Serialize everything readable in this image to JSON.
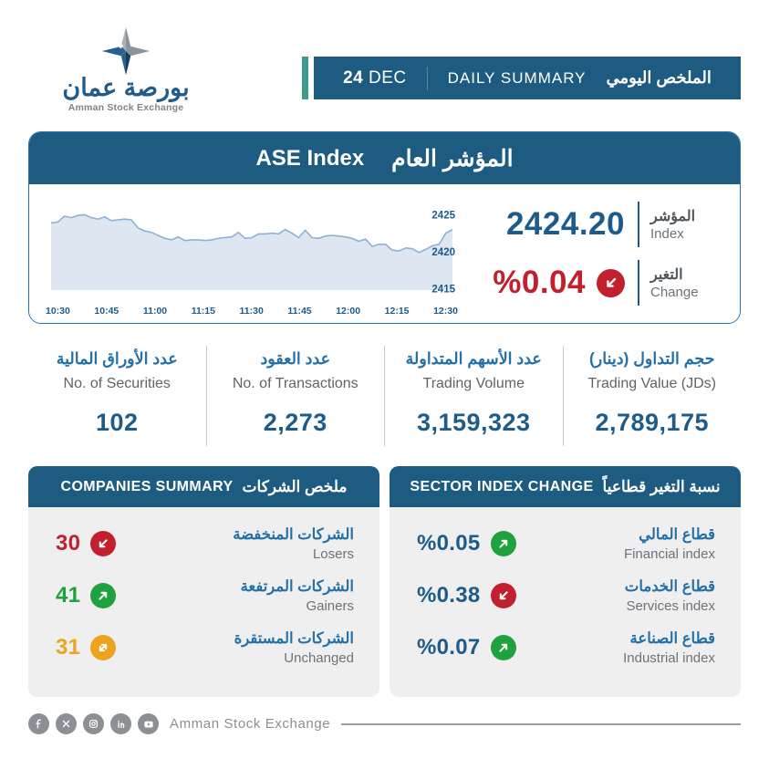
{
  "colors": {
    "primary": "#1d5b80",
    "accent_teal": "#3f9a8e",
    "value_blue": "#1d5c8a",
    "label_blue": "#2470a8",
    "red": "#c21f2f",
    "green": "#1fa23d",
    "amber": "#eca41f",
    "gray_text": "#6d7378",
    "chart_fill": "#dde6f1",
    "chart_line": "#8fb0d4"
  },
  "brand": {
    "name_ar": "بورصة عمان",
    "name_en": "Amman Stock Exchange"
  },
  "header": {
    "day": "24",
    "month": "DEC",
    "title_en": "DAILY SUMMARY",
    "title_ar": "الملخص اليومي"
  },
  "index_card": {
    "title_en": "ASE Index",
    "title_ar": "المؤشر العام",
    "index": {
      "value": "2424.20",
      "label_ar": "المؤشر",
      "label_en": "Index"
    },
    "change": {
      "value": "%0.04",
      "label_ar": "التغير",
      "label_en": "Change",
      "direction": "down",
      "value_color": "#c21f2f",
      "icon_color": "#c21f2f"
    }
  },
  "stats": [
    {
      "label_ar": "عدد الأوراق المالية",
      "label_en": "No. of Securities",
      "value": "102"
    },
    {
      "label_ar": "عدد العقود",
      "label_en": "No. of Transactions",
      "value": "2,273"
    },
    {
      "label_ar": "عدد الأسهم المتداولة",
      "label_en": "Trading Volume",
      "value": "3,159,323"
    },
    {
      "label_ar": "حجم التداول (دينار)",
      "label_en": "Trading Value (JDs)",
      "value": "2,789,175"
    }
  ],
  "companies": {
    "title_en": "COMPANIES SUMMARY",
    "title_ar": "ملخص الشركات",
    "rows": [
      {
        "label_ar": "الشركات المنخفضة",
        "label_en": "Losers",
        "value": "30",
        "direction": "down",
        "value_color": "#c21f2f",
        "icon_color": "#c21f2f"
      },
      {
        "label_ar": "الشركات المرتفعة",
        "label_en": "Gainers",
        "value": "41",
        "direction": "up",
        "value_color": "#1fa23d",
        "icon_color": "#1fa23d"
      },
      {
        "label_ar": "الشركات المستقرة",
        "label_en": "Unchanged",
        "value": "31",
        "direction": "both",
        "value_color": "#eca41f",
        "icon_color": "#eca41f"
      }
    ]
  },
  "sectors": {
    "title_en": "SECTOR INDEX CHANGE",
    "title_ar": "نسبة التغير قطاعياً",
    "rows": [
      {
        "label_ar": "قطاع المالي",
        "label_en": "Financial index",
        "value": "%0.05",
        "direction": "up",
        "value_color": "#1d5c8a",
        "icon_color": "#1fa23d"
      },
      {
        "label_ar": "قطاع الخدمات",
        "label_en": "Services index",
        "value": "%0.38",
        "direction": "down",
        "value_color": "#1d5c8a",
        "icon_color": "#c21f2f"
      },
      {
        "label_ar": "قطاع الصناعة",
        "label_en": "Industrial index",
        "value": "%0.07",
        "direction": "up",
        "value_color": "#1d5c8a",
        "icon_color": "#1fa23d"
      }
    ]
  },
  "footer": {
    "brand_text": "Amman Stock Exchange",
    "social": [
      "facebook",
      "x",
      "instagram",
      "linkedin",
      "youtube"
    ]
  },
  "chart_data": {
    "type": "area",
    "title": "ASE Index intraday",
    "x_ticks": [
      "10:30",
      "10:45",
      "11:00",
      "11:15",
      "11:30",
      "11:45",
      "12:00",
      "12:15",
      "12:30"
    ],
    "y_ticks": [
      2425,
      2420,
      2415
    ],
    "ylim": [
      2414.8,
      2426.4
    ],
    "values": [
      2423.9,
      2424.0,
      2424.8,
      2424.6,
      2424.9,
      2425.0,
      2424.6,
      2424.4,
      2424.7,
      2424.2,
      2424.3,
      2424.4,
      2424.3,
      2423.2,
      2422.8,
      2422.6,
      2422.2,
      2421.8,
      2421.6,
      2422.0,
      2421.5,
      2421.6,
      2421.6,
      2421.5,
      2421.6,
      2421.8,
      2421.9,
      2422.0,
      2422.6,
      2421.8,
      2421.9,
      2422.4,
      2422.4,
      2422.5,
      2422.4,
      2423.0,
      2422.5,
      2421.9,
      2422.9,
      2421.9,
      2421.8,
      2422.1,
      2422.2,
      2422.1,
      2422.0,
      2421.8,
      2421.4,
      2421.7,
      2420.7,
      2421.0,
      2421.0,
      2420.2,
      2420.1,
      2420.5,
      2420.4,
      2419.9,
      2420.3,
      2420.8,
      2421.0,
      2422.5,
      2423.0
    ]
  }
}
